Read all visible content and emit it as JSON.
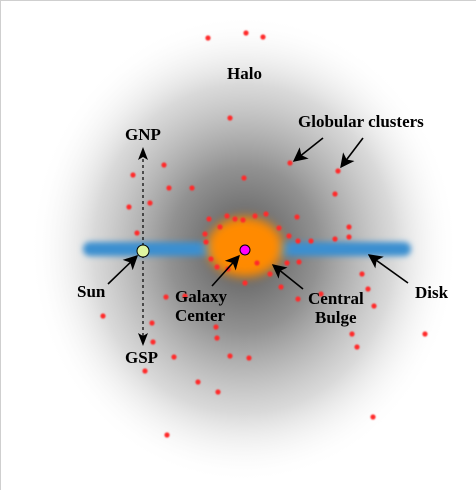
{
  "labels": {
    "halo": "Halo",
    "globular_clusters": "Globular clusters",
    "gnp": "GNP",
    "gsp": "GSP",
    "sun": "Sun",
    "galaxy_center_line1": "Galaxy",
    "galaxy_center_line2": "Center",
    "central_bulge_line1": "Central",
    "central_bulge_line2": "Bulge",
    "disk": "Disk"
  },
  "colors": {
    "halo": "#8a8a8a",
    "disk": "#3b8fd0",
    "bulge": "#ff8a00",
    "center": "#ff00ff",
    "sun": "#dff5a0",
    "cluster": "#ff2a2a"
  }
}
